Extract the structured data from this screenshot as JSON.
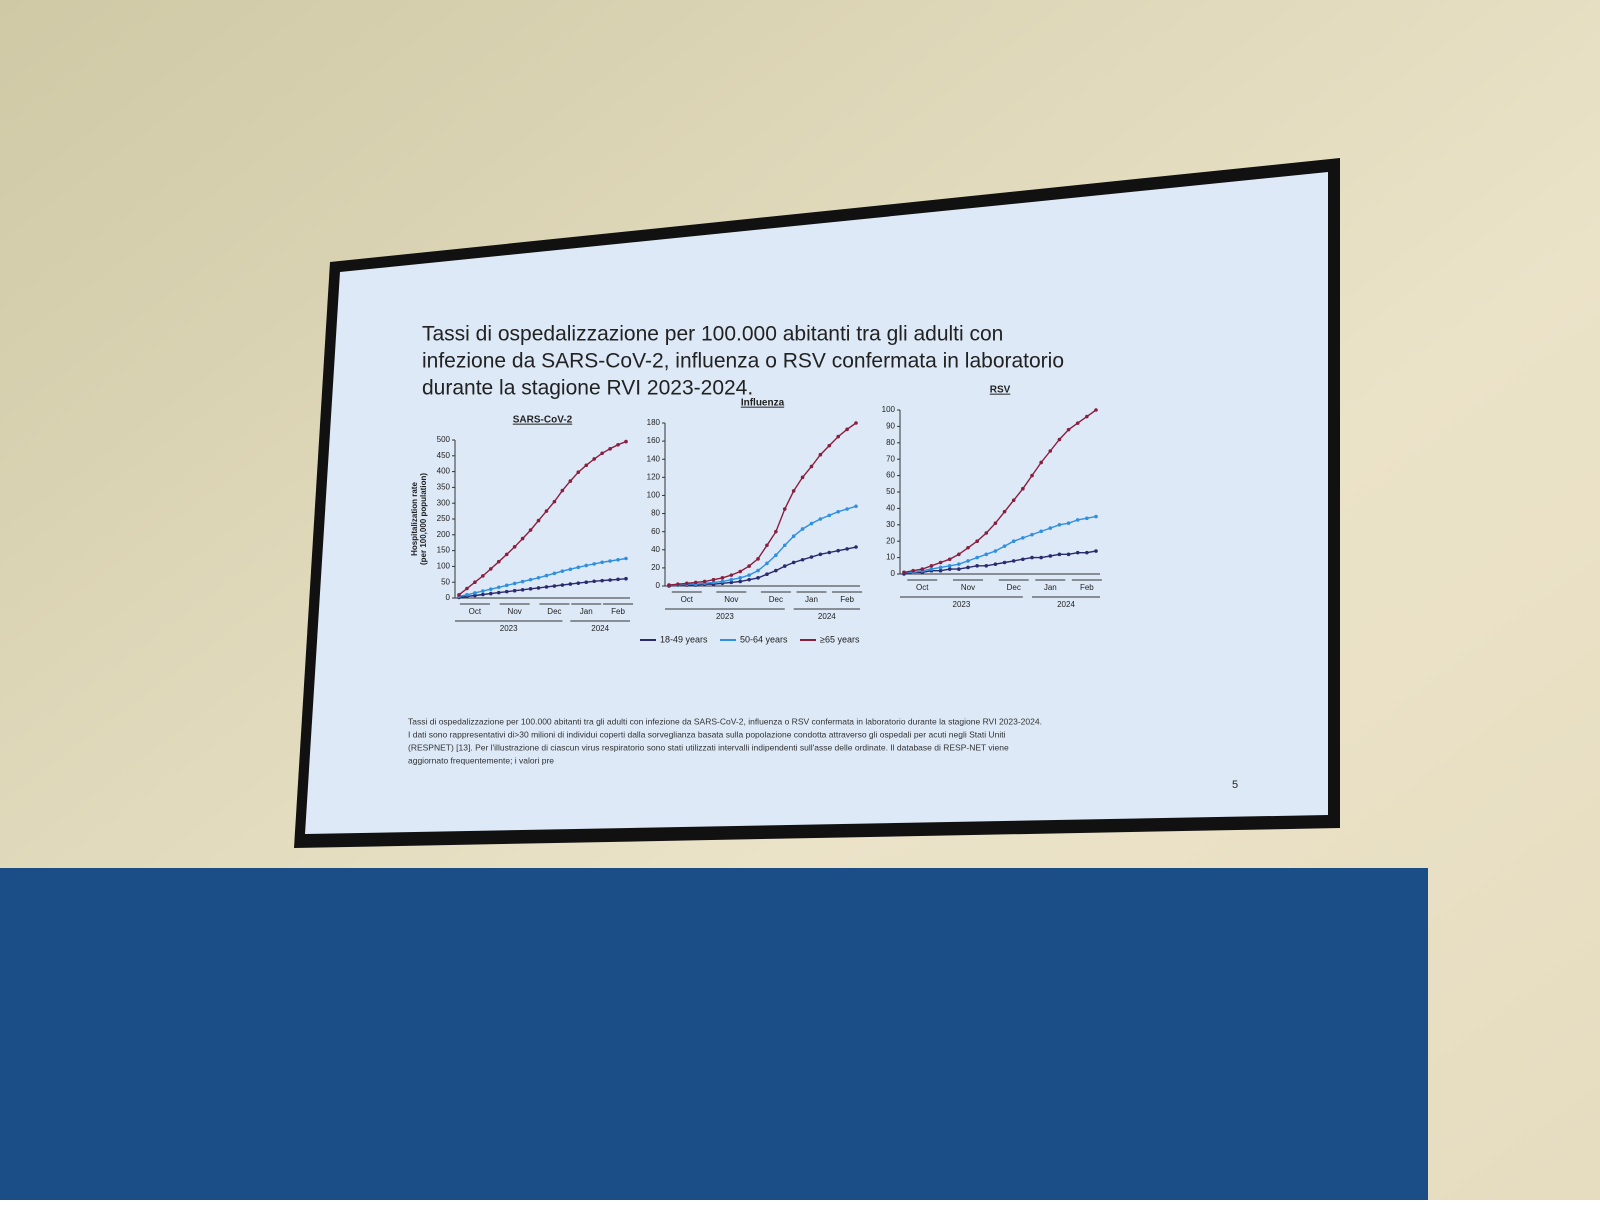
{
  "slide": {
    "title_lines": [
      "Tassi di ospedalizzazione per 100.000 abitanti tra gli adulti con",
      "infezione da SARS-CoV-2, influenza o RSV confermata in laboratorio",
      "durante la stagione RVI 2023-2024."
    ],
    "caption_lines": [
      "Tassi di ospedalizzazione per 100.000 abitanti tra gli adulti con infezione da SARS-CoV-2, influenza o RSV confermata in laboratorio durante la stagione RVI 2023-2024.",
      "I dati sono rappresentativi di>30 milioni di individui coperti dalla sorveglianza basata sulla popolazione condotta attraverso gli ospedali per acuti negli Stati Uniti",
      "(RESPNET) [13]. Per l'illustrazione di ciascun virus respiratorio sono stati utilizzati intervalli indipendenti sull'asse delle ordinate. Il database di RESP-NET viene",
      "aggiornato frequentemente; i valori pre"
    ],
    "page_number": "5"
  },
  "chart_data": [
    {
      "type": "line",
      "title": "SARS-CoV-2",
      "y_label_lines": [
        "Hospitalization rate",
        "(per 100,000 population)"
      ],
      "categories": [
        null,
        null,
        "Oct",
        null,
        null,
        null,
        null,
        "Nov",
        null,
        null,
        null,
        null,
        "Dec",
        null,
        null,
        null,
        "Jan",
        null,
        null,
        null,
        "Feb",
        null
      ],
      "year_labels": [
        "2023",
        "2024"
      ],
      "ylim": [
        0,
        500
      ],
      "yticks": [
        0,
        50,
        100,
        150,
        200,
        250,
        300,
        350,
        400,
        450,
        500
      ],
      "series": [
        {
          "name": "18-49 years",
          "color": "#2b2a6e",
          "values": [
            2,
            5,
            8,
            11,
            14,
            17,
            20,
            23,
            26,
            29,
            32,
            35,
            38,
            41,
            44,
            47,
            50,
            53,
            55,
            57,
            59,
            61
          ]
        },
        {
          "name": "50-64 years",
          "color": "#2f8fe0",
          "values": [
            5,
            10,
            16,
            22,
            28,
            34,
            40,
            46,
            52,
            58,
            64,
            71,
            78,
            85,
            91,
            97,
            103,
            108,
            113,
            117,
            121,
            125
          ]
        },
        {
          "name": "≥65 years",
          "color": "#8b1e3f",
          "values": [
            10,
            30,
            50,
            70,
            92,
            115,
            138,
            162,
            188,
            215,
            245,
            275,
            305,
            340,
            370,
            398,
            420,
            440,
            458,
            472,
            485,
            495
          ]
        }
      ]
    },
    {
      "type": "line",
      "title": "Influenza",
      "categories": [
        null,
        null,
        "Oct",
        null,
        null,
        null,
        null,
        "Nov",
        null,
        null,
        null,
        null,
        "Dec",
        null,
        null,
        null,
        "Jan",
        null,
        null,
        null,
        "Feb",
        null
      ],
      "year_labels": [
        "2023",
        "2024"
      ],
      "ylim": [
        0,
        180
      ],
      "yticks": [
        0,
        20,
        40,
        60,
        80,
        100,
        120,
        140,
        160,
        180
      ],
      "series": [
        {
          "name": "18-49 years",
          "color": "#2b2a6e",
          "values": [
            0,
            1,
            1,
            1,
            2,
            2,
            3,
            4,
            5,
            7,
            9,
            13,
            17,
            22,
            26,
            29,
            32,
            35,
            37,
            39,
            41,
            43
          ]
        },
        {
          "name": "50-64 years",
          "color": "#2f8fe0",
          "values": [
            1,
            1,
            2,
            2,
            3,
            4,
            5,
            7,
            9,
            12,
            17,
            25,
            34,
            45,
            55,
            63,
            69,
            74,
            78,
            82,
            85,
            88
          ]
        },
        {
          "name": "≥65 years",
          "color": "#8b1e3f",
          "values": [
            1,
            2,
            3,
            4,
            5,
            7,
            9,
            12,
            16,
            22,
            30,
            45,
            60,
            85,
            105,
            120,
            132,
            145,
            155,
            165,
            173,
            180
          ]
        }
      ]
    },
    {
      "type": "line",
      "title": "RSV",
      "categories": [
        null,
        null,
        "Oct",
        null,
        null,
        null,
        null,
        "Nov",
        null,
        null,
        null,
        null,
        "Dec",
        null,
        null,
        null,
        "Jan",
        null,
        null,
        null,
        "Feb",
        null
      ],
      "year_labels": [
        "2023",
        "2024"
      ],
      "ylim": [
        0,
        100
      ],
      "yticks": [
        0,
        10,
        20,
        30,
        40,
        50,
        60,
        70,
        80,
        90,
        100
      ],
      "series": [
        {
          "name": "18-49 years",
          "color": "#2b2a6e",
          "values": [
            0,
            1,
            1,
            2,
            2,
            3,
            3,
            4,
            5,
            5,
            6,
            7,
            8,
            9,
            10,
            10,
            11,
            12,
            12,
            13,
            13,
            14
          ]
        },
        {
          "name": "50-64 years",
          "color": "#2f8fe0",
          "values": [
            1,
            1,
            2,
            3,
            4,
            5,
            6,
            8,
            10,
            12,
            14,
            17,
            20,
            22,
            24,
            26,
            28,
            30,
            31,
            33,
            34,
            35
          ]
        },
        {
          "name": "≥65 years",
          "color": "#8b1e3f",
          "values": [
            1,
            2,
            3,
            5,
            7,
            9,
            12,
            16,
            20,
            25,
            31,
            38,
            45,
            52,
            60,
            68,
            75,
            82,
            88,
            92,
            96,
            100
          ]
        }
      ]
    }
  ]
}
